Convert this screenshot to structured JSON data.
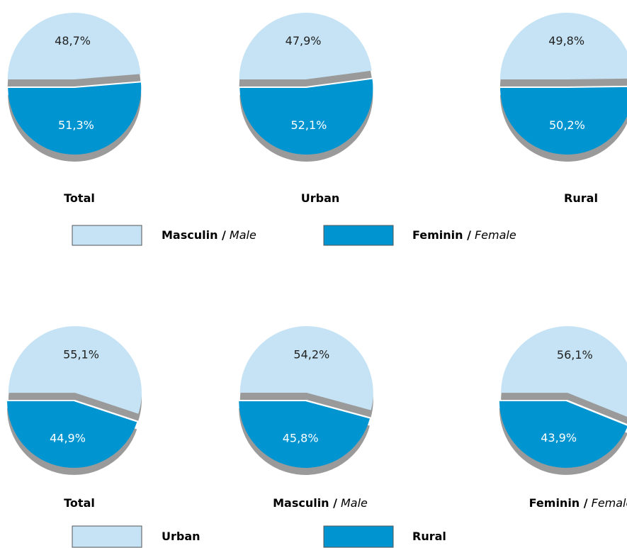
{
  "chart_data": [
    {
      "type": "pie",
      "categories": [
        [
          "Masculin /",
          "Male"
        ],
        [
          "Feminin /",
          "Female"
        ]
      ],
      "colors": [
        "#c5e3f4",
        "#0095d0"
      ],
      "pies": [
        {
          "title": [
            "Total"
          ],
          "values": [
            48.7,
            51.3
          ],
          "value_labels": [
            "48,7%",
            "51,3%"
          ]
        },
        {
          "title": [
            "Urban"
          ],
          "values": [
            47.9,
            52.1
          ],
          "value_labels": [
            "47,9%",
            "52,1%"
          ]
        },
        {
          "title": [
            "Rural"
          ],
          "values": [
            49.8,
            50.2
          ],
          "value_labels": [
            "49,8%",
            "50,2%"
          ]
        }
      ]
    },
    {
      "type": "pie",
      "categories": [
        [
          "Urban"
        ],
        [
          "Rural"
        ]
      ],
      "colors": [
        "#c5e3f4",
        "#0095d0"
      ],
      "pies": [
        {
          "title": [
            "Total"
          ],
          "values": [
            55.1,
            44.9
          ],
          "value_labels": [
            "55,1%",
            "44,9%"
          ]
        },
        {
          "title": [
            "Masculin /",
            "Male"
          ],
          "values": [
            54.2,
            45.8
          ],
          "value_labels": [
            "54,2%",
            "45,8%"
          ]
        },
        {
          "title": [
            "Feminin /",
            "Female"
          ],
          "values": [
            56.1,
            43.9
          ],
          "value_labels": [
            "56,1%",
            "43,9%"
          ]
        }
      ]
    }
  ]
}
